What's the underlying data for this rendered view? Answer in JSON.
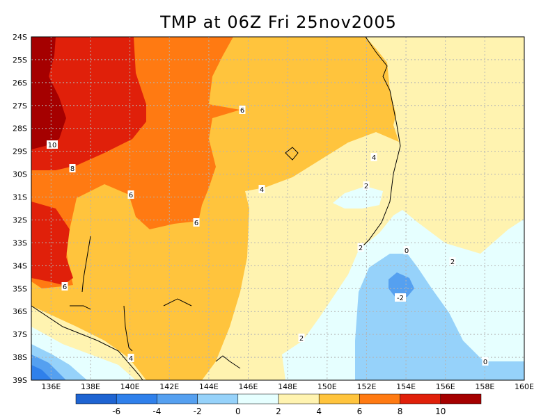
{
  "title": "TMP at 06Z Fri 25nov2005",
  "map": {
    "lat_labels": [
      "24S",
      "25S",
      "26S",
      "27S",
      "28S",
      "29S",
      "30S",
      "31S",
      "32S",
      "33S",
      "34S",
      "35S",
      "36S",
      "37S",
      "38S",
      "39S"
    ],
    "lon_labels": [
      "136E",
      "138E",
      "140E",
      "142E",
      "144E",
      "146E",
      "148E",
      "150E",
      "152E",
      "154E",
      "156E",
      "158E",
      "160E"
    ],
    "lon_range": [
      135,
      160
    ],
    "lat_range": [
      -39,
      -24
    ],
    "field": "TMP",
    "units_interval": 2
  },
  "contour_labels": [
    {
      "text": "10"
    },
    {
      "text": "8"
    },
    {
      "text": "6"
    },
    {
      "text": "6"
    },
    {
      "text": "6"
    },
    {
      "text": "6"
    },
    {
      "text": "4"
    },
    {
      "text": "4"
    },
    {
      "text": "4"
    },
    {
      "text": "2"
    },
    {
      "text": "2"
    },
    {
      "text": "2"
    },
    {
      "text": "2"
    },
    {
      "text": "0"
    },
    {
      "text": "0"
    },
    {
      "text": "-2"
    }
  ],
  "colorbar": {
    "colors": [
      "#1e64d2",
      "#2f80eb",
      "#55a0f0",
      "#96d2fa",
      "#e6ffff",
      "#fff3b0",
      "#ffc43d",
      "#ff7a12",
      "#e0200a",
      "#a50000"
    ],
    "labels": [
      "-6",
      "-4",
      "-2",
      "0",
      "2",
      "4",
      "6",
      "8",
      "10"
    ]
  }
}
